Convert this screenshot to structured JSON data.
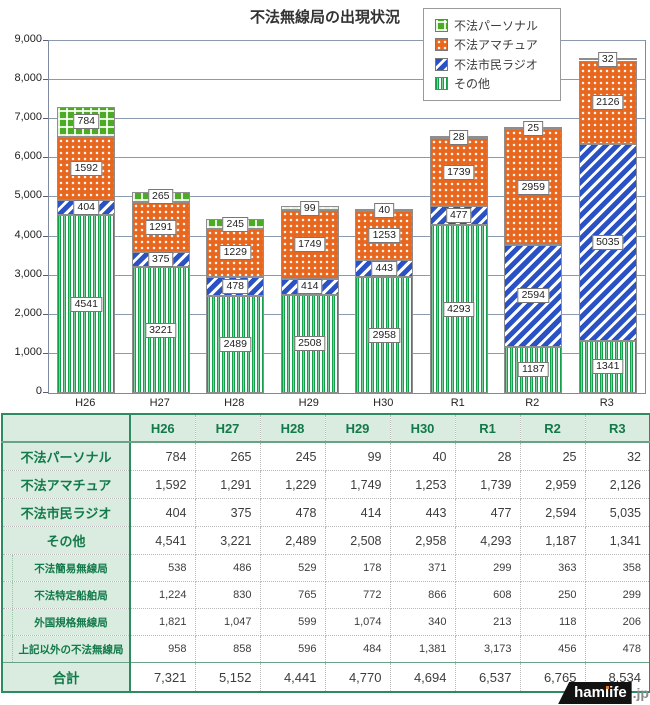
{
  "title": "不法無線局の出現状況",
  "chart_data": {
    "type": "bar",
    "subtype": "stacked",
    "categories": [
      "H26",
      "H27",
      "H28",
      "H29",
      "H30",
      "R1",
      "R2",
      "R3"
    ],
    "series": [
      {
        "name": "その他",
        "pattern": "green-vertical-stripes",
        "values": [
          4541,
          3221,
          2489,
          2508,
          2958,
          4293,
          1187,
          1341
        ]
      },
      {
        "name": "不法市民ラジオ",
        "pattern": "blue-diagonal-stripes",
        "values": [
          404,
          375,
          478,
          414,
          443,
          477,
          2594,
          5035
        ]
      },
      {
        "name": "不法アマチュア",
        "pattern": "orange-dots",
        "values": [
          1592,
          1291,
          1229,
          1749,
          1253,
          1739,
          2959,
          2126
        ]
      },
      {
        "name": "不法パーソナル",
        "pattern": "green-plaid",
        "values": [
          784,
          265,
          245,
          99,
          40,
          28,
          25,
          32
        ]
      }
    ],
    "ylim": [
      0,
      9000
    ],
    "ytick_step": 1000,
    "ytick_labels": [
      "0",
      "1,000",
      "2,000",
      "3,000",
      "4,000",
      "5,000",
      "6,000",
      "7,000",
      "8,000",
      "9,000"
    ],
    "grid": "horizontal",
    "legend_position": "top-right"
  },
  "legend": [
    {
      "label": "不法パーソナル",
      "pattern": "green-plaid"
    },
    {
      "label": "不法アマチュア",
      "pattern": "orange-dots"
    },
    {
      "label": "不法市民ラジオ",
      "pattern": "blue-diagonal-stripes"
    },
    {
      "label": "その他",
      "pattern": "green-vertical-stripes"
    }
  ],
  "colors": {
    "green": "#4cab24",
    "orange": "#e8671e",
    "blue": "#2a52c4",
    "stripe_green": "#14a04b",
    "grid": "#8c9ab0",
    "table_header_bg": "#d9ecdf",
    "table_text_green": "#12794a",
    "table_border_green": "#2e8a60",
    "logo_orange": "#f07820"
  },
  "table": {
    "col_headers": [
      "H26",
      "H27",
      "H28",
      "H29",
      "H30",
      "R1",
      "R2",
      "R3"
    ],
    "rows": [
      {
        "type": "main",
        "label": "不法パーソナル",
        "values": [
          "784",
          "265",
          "245",
          "99",
          "40",
          "28",
          "25",
          "32"
        ]
      },
      {
        "type": "main",
        "label": "不法アマチュア",
        "values": [
          "1,592",
          "1,291",
          "1,229",
          "1,749",
          "1,253",
          "1,739",
          "2,959",
          "2,126"
        ]
      },
      {
        "type": "main",
        "label": "不法市民ラジオ",
        "values": [
          "404",
          "375",
          "478",
          "414",
          "443",
          "477",
          "2,594",
          "5,035"
        ]
      },
      {
        "type": "main",
        "label": "その他",
        "values": [
          "4,541",
          "3,221",
          "2,489",
          "2,508",
          "2,958",
          "4,293",
          "1,187",
          "1,341"
        ]
      },
      {
        "type": "sub",
        "label": "不法簡易無線局",
        "values": [
          "538",
          "486",
          "529",
          "178",
          "371",
          "299",
          "363",
          "358"
        ]
      },
      {
        "type": "sub",
        "label": "不法特定船舶局",
        "values": [
          "1,224",
          "830",
          "765",
          "772",
          "866",
          "608",
          "250",
          "299"
        ]
      },
      {
        "type": "sub",
        "label": "外国規格無線局",
        "values": [
          "1,821",
          "1,047",
          "599",
          "1,074",
          "340",
          "213",
          "118",
          "206"
        ]
      },
      {
        "type": "sub",
        "label": "上記以外の不法無線局",
        "values": [
          "958",
          "858",
          "596",
          "484",
          "1,381",
          "3,173",
          "456",
          "478"
        ]
      },
      {
        "type": "total",
        "label": "合計",
        "values": [
          "7,321",
          "5,152",
          "4,441",
          "4,770",
          "4,694",
          "6,537",
          "6,765",
          "8,534"
        ]
      }
    ]
  },
  "logo": {
    "text": "hamlife",
    "suffix": ".jp"
  }
}
